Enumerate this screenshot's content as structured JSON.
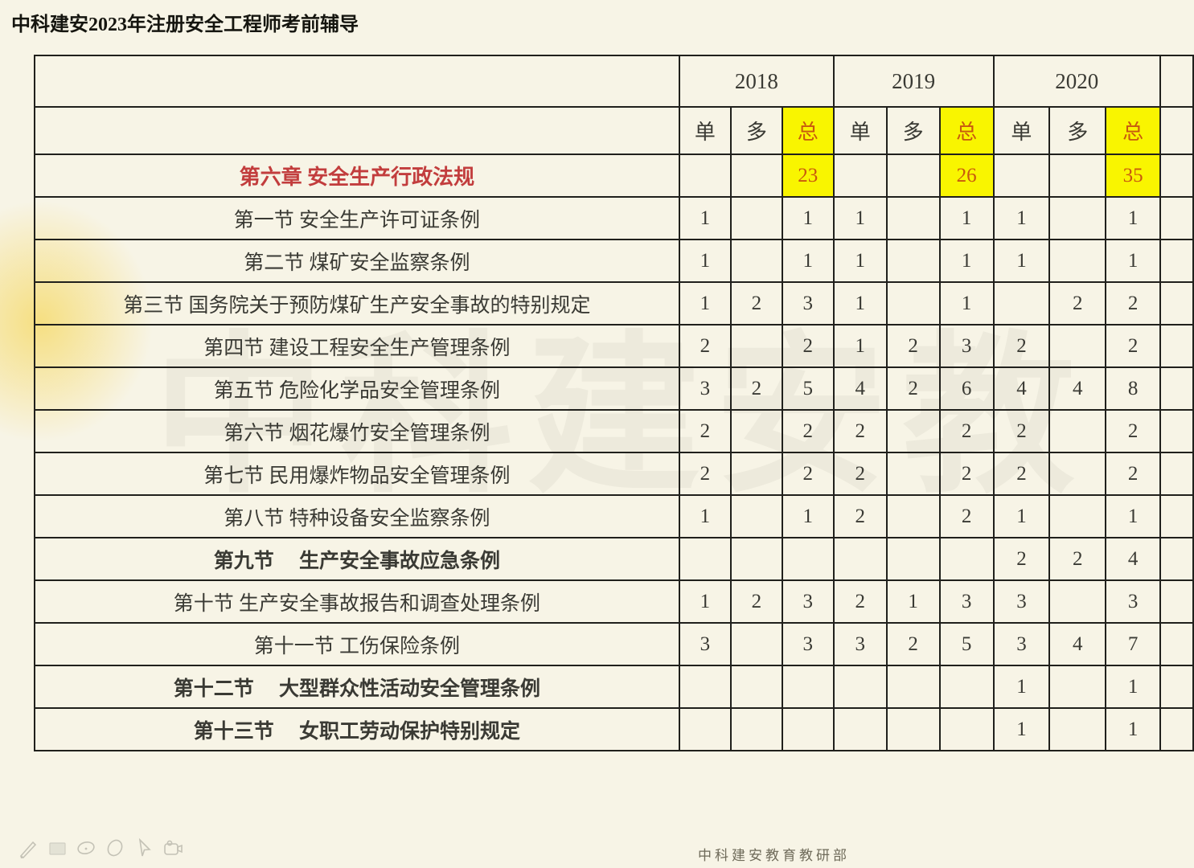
{
  "page": {
    "title": "中科建安2023年注册安全工程师考前辅导",
    "footer": "中科建安教育教研部",
    "watermark": "中科建安教"
  },
  "colors": {
    "background": "#f7f4e6",
    "highlight_yellow": "#f9f500",
    "highlight_text_orange": "#c8590e",
    "chapter_red": "#c23d3d",
    "grid_border": "#20201c"
  },
  "table": {
    "year_groups": [
      {
        "label": "2018"
      },
      {
        "label": "2019"
      },
      {
        "label": "2020"
      }
    ],
    "sub_headers": [
      "单",
      "多",
      "总"
    ],
    "rows": [
      {
        "label": "第六章  安全生产行政法规",
        "style": "chapter",
        "values": [
          "",
          "",
          "23",
          "",
          "",
          "26",
          "",
          "",
          "35"
        ]
      },
      {
        "label": "第一节  安全生产许可证条例",
        "style": "",
        "values": [
          "1",
          "",
          "1",
          "1",
          "",
          "1",
          "1",
          "",
          "1"
        ]
      },
      {
        "label": "第二节  煤矿安全监察条例",
        "style": "",
        "values": [
          "1",
          "",
          "1",
          "1",
          "",
          "1",
          "1",
          "",
          "1"
        ]
      },
      {
        "label": "第三节  国务院关于预防煤矿生产安全事故的特别规定",
        "style": "",
        "values": [
          "1",
          "2",
          "3",
          "1",
          "",
          "1",
          "",
          "2",
          "2"
        ]
      },
      {
        "label": "第四节  建设工程安全生产管理条例",
        "style": "",
        "values": [
          "2",
          "",
          "2",
          "1",
          "2",
          "3",
          "2",
          "",
          "2"
        ]
      },
      {
        "label": "第五节  危险化学品安全管理条例",
        "style": "",
        "values": [
          "3",
          "2",
          "5",
          "4",
          "2",
          "6",
          "4",
          "4",
          "8"
        ]
      },
      {
        "label": "第六节  烟花爆竹安全管理条例",
        "style": "",
        "values": [
          "2",
          "",
          "2",
          "2",
          "",
          "2",
          "2",
          "",
          "2"
        ]
      },
      {
        "label": "第七节  民用爆炸物品安全管理条例",
        "style": "",
        "values": [
          "2",
          "",
          "2",
          "2",
          "",
          "2",
          "2",
          "",
          "2"
        ]
      },
      {
        "label": "第八节  特种设备安全监察条例",
        "style": "",
        "values": [
          "1",
          "",
          "1",
          "2",
          "",
          "2",
          "1",
          "",
          "1"
        ]
      },
      {
        "label": "第九节　 生产安全事故应急条例",
        "style": "bold",
        "values": [
          "",
          "",
          "",
          "",
          "",
          "",
          "2",
          "2",
          "4"
        ]
      },
      {
        "label": "第十节  生产安全事故报告和调查处理条例",
        "style": "",
        "values": [
          "1",
          "2",
          "3",
          "2",
          "1",
          "3",
          "3",
          "",
          "3"
        ]
      },
      {
        "label": "第十一节  工伤保险条例",
        "style": "",
        "values": [
          "3",
          "",
          "3",
          "3",
          "2",
          "5",
          "3",
          "4",
          "7"
        ]
      },
      {
        "label": "第十二节　 大型群众性活动安全管理条例",
        "style": "bold",
        "values": [
          "",
          "",
          "",
          "",
          "",
          "",
          "1",
          "",
          "1"
        ]
      },
      {
        "label": "第十三节　 女职工劳动保护特别规定",
        "style": "bold",
        "values": [
          "",
          "",
          "",
          "",
          "",
          "",
          "1",
          "",
          "1"
        ]
      }
    ]
  },
  "toolbar": {
    "icons": [
      "pencil-icon",
      "rectangle-icon",
      "ellipse-icon",
      "eraser-icon",
      "cursor-icon",
      "camera-icon"
    ]
  }
}
